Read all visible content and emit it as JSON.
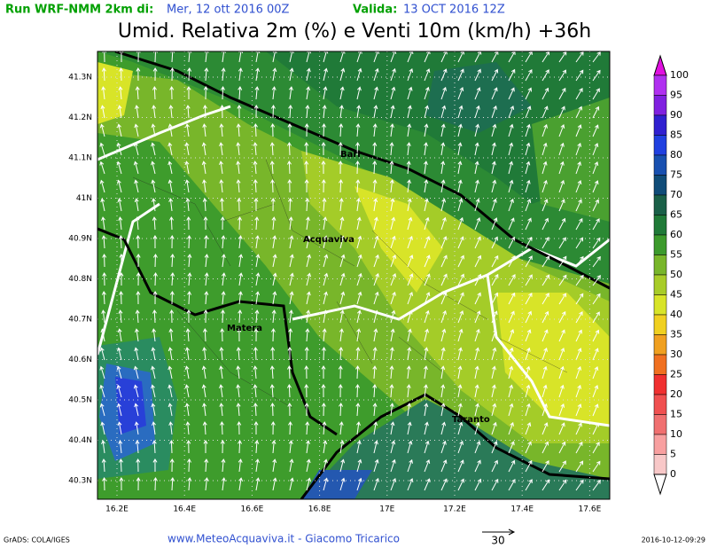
{
  "header": {
    "run_label": "Run WRF-NMM 2km di:",
    "run_date": "Mer, 12 ott 2016 00Z",
    "valid_label": "Valida:",
    "valid_date": "13 OCT 2016 12Z",
    "title": "Umid. Relativa 2m (%) e Venti 10m (km/h) +36h"
  },
  "map": {
    "lat_labels": [
      "41.3N",
      "41.2N",
      "41.1N",
      "41N",
      "40.9N",
      "40.8N",
      "40.7N",
      "40.6N",
      "40.5N",
      "40.4N",
      "40.3N"
    ],
    "lon_labels": [
      "16.2E",
      "16.4E",
      "16.6E",
      "16.8E",
      "17E",
      "17.2E",
      "17.4E",
      "17.6E"
    ],
    "places": [
      "Bari",
      "Acquaviva",
      "Matera",
      "Taranto"
    ]
  },
  "colorbar": {
    "labels": [
      100,
      95,
      90,
      85,
      80,
      75,
      70,
      65,
      60,
      55,
      50,
      45,
      40,
      35,
      30,
      25,
      20,
      15,
      10,
      5,
      0
    ]
  },
  "footer": {
    "software": "GrADS: COLA/IGES",
    "credit": "www.MeteoAcquaviva.it - Giacomo Tricarico",
    "wind_ref": "30",
    "timestamp": "2016-10-12-09:29"
  }
}
